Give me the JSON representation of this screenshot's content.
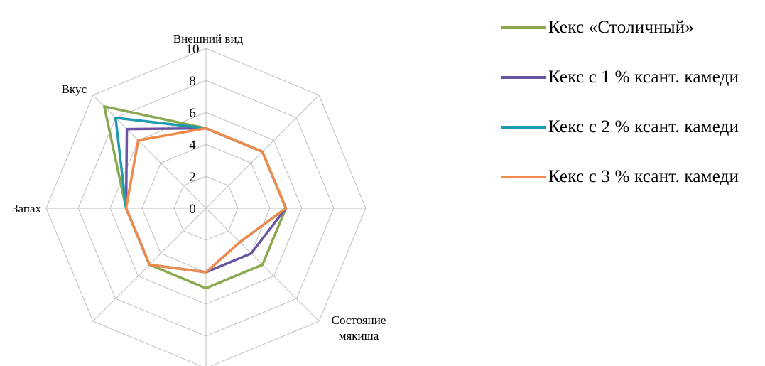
{
  "chart_data": {
    "type": "radar",
    "axes": [
      "Внешний вид",
      "Вкус",
      "Запах",
      "",
      "",
      "",
      "Состояние мякиша",
      ""
    ],
    "axis_label_lines": {
      "Состояние мякиша": [
        "Состояние",
        "мякиша"
      ]
    },
    "ticks": [
      "0",
      "2",
      "4",
      "6",
      "8",
      "10"
    ],
    "rlim": [
      0,
      10
    ],
    "grid": true,
    "legend_position": "right",
    "series": [
      {
        "name": "Кекс «Столичный»",
        "color": "#8aa84e",
        "values": [
          5,
          9,
          5,
          5,
          5,
          5,
          5,
          5
        ]
      },
      {
        "name": "Кекс с 1 % ксант. камеди",
        "color": "#6a55a3",
        "values": [
          5,
          7,
          5,
          5,
          4,
          4,
          5,
          5
        ]
      },
      {
        "name": "Кекс с 2 % ксант. камеди",
        "color": "#1f9bb0",
        "values": [
          5,
          8,
          5,
          5,
          4,
          3,
          5,
          5
        ]
      },
      {
        "name": "Кекс с 3 % ксант. камеди",
        "color": "#f08a4b",
        "values": [
          5,
          6,
          5,
          5,
          4,
          3,
          5,
          5
        ]
      }
    ]
  }
}
